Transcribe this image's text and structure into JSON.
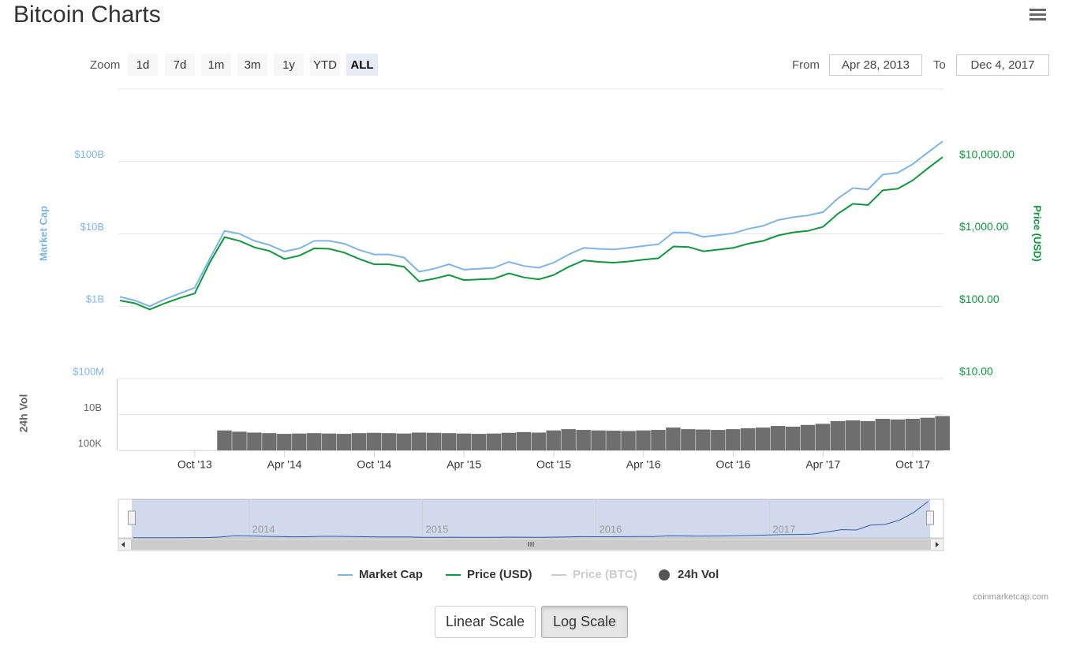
{
  "header": {
    "title": "Bitcoin Charts"
  },
  "zoom": {
    "label": "Zoom",
    "buttons": [
      "1d",
      "7d",
      "1m",
      "3m",
      "1y",
      "YTD",
      "ALL"
    ],
    "selected": 6
  },
  "range": {
    "from_label": "From",
    "from": "Apr 28, 2013",
    "to_label": "To",
    "to": "Dec 4, 2017"
  },
  "chart_data": {
    "type": "line",
    "log_scale": true,
    "grid": true,
    "x": [
      "2013-05",
      "2013-06",
      "2013-07",
      "2013-08",
      "2013-09",
      "2013-10",
      "2013-11",
      "2013-12",
      "2014-01",
      "2014-02",
      "2014-03",
      "2014-04",
      "2014-05",
      "2014-06",
      "2014-07",
      "2014-08",
      "2014-09",
      "2014-10",
      "2014-11",
      "2014-12",
      "2015-01",
      "2015-02",
      "2015-03",
      "2015-04",
      "2015-05",
      "2015-06",
      "2015-07",
      "2015-08",
      "2015-09",
      "2015-10",
      "2015-11",
      "2015-12",
      "2016-01",
      "2016-02",
      "2016-03",
      "2016-04",
      "2016-05",
      "2016-06",
      "2016-07",
      "2016-08",
      "2016-09",
      "2016-10",
      "2016-11",
      "2016-12",
      "2017-01",
      "2017-02",
      "2017-03",
      "2017-04",
      "2017-05",
      "2017-06",
      "2017-07",
      "2017-08",
      "2017-09",
      "2017-10",
      "2017-11",
      "2017-12"
    ],
    "xlim": [
      "2013-05",
      "2017-12"
    ],
    "xticks": [
      {
        "value": "2013-10",
        "label": "Oct '13"
      },
      {
        "value": "2014-04",
        "label": "Apr '14"
      },
      {
        "value": "2014-10",
        "label": "Oct '14"
      },
      {
        "value": "2015-04",
        "label": "Apr '15"
      },
      {
        "value": "2015-10",
        "label": "Oct '15"
      },
      {
        "value": "2016-04",
        "label": "Apr '16"
      },
      {
        "value": "2016-10",
        "label": "Oct '16"
      },
      {
        "value": "2017-04",
        "label": "Apr '17"
      },
      {
        "value": "2017-10",
        "label": "Oct '17"
      }
    ],
    "ylabel": "Market Cap",
    "ylim": [
      100000000,
      1000000000000
    ],
    "yticks": [
      {
        "value": 100000000,
        "label": "$100M"
      },
      {
        "value": 1000000000,
        "label": "$1B"
      },
      {
        "value": 10000000000,
        "label": "$10B"
      },
      {
        "value": 100000000000,
        "label": "$100B"
      }
    ],
    "y2label": "Price (USD)",
    "y2lim": [
      10,
      100000
    ],
    "y2ticks": [
      {
        "value": 10,
        "label": "$10.00"
      },
      {
        "value": 100,
        "label": "$100.00"
      },
      {
        "value": 1000,
        "label": "$1,000.00"
      },
      {
        "value": 10000,
        "label": "$10,000.00"
      }
    ],
    "vol_label": "24h Vol",
    "vol_ylim": [
      100000,
      1000000000000000
    ],
    "vol_yticks": [
      {
        "value": 100000,
        "label": "100K"
      },
      {
        "value": 10000000000,
        "label": "10B"
      }
    ],
    "series": [
      {
        "name": "Market Cap",
        "color": "#7cb5ec",
        "axis": "y",
        "values": [
          1350000000,
          1200000000,
          1000000000,
          1250000000,
          1500000000,
          1800000000,
          4500000000,
          11000000000,
          10000000000,
          8000000000,
          7000000000,
          5700000000,
          6300000000,
          8000000000,
          8000000000,
          7300000000,
          6000000000,
          5200000000,
          5200000000,
          4700000000,
          3000000000,
          3300000000,
          3800000000,
          3200000000,
          3300000000,
          3400000000,
          4100000000,
          3600000000,
          3400000000,
          4000000000,
          5200000000,
          6400000000,
          6200000000,
          6100000000,
          6400000000,
          6800000000,
          7200000000,
          10500000000,
          10400000000,
          9100000000,
          9600000000,
          10200000000,
          11700000000,
          12900000000,
          15500000000,
          17000000000,
          18000000000,
          20000000000,
          31000000000,
          43000000000,
          41000000000,
          66000000000,
          70000000000,
          92000000000,
          133000000000,
          190000000000
        ]
      },
      {
        "name": "Price (USD)",
        "color": "#0a9a3a",
        "axis": "y2",
        "values": [
          120,
          110,
          90,
          110,
          130,
          150,
          400,
          900,
          800,
          650,
          580,
          450,
          500,
          630,
          620,
          550,
          450,
          380,
          380,
          350,
          220,
          240,
          270,
          230,
          235,
          240,
          285,
          250,
          235,
          270,
          350,
          430,
          410,
          400,
          415,
          440,
          460,
          670,
          660,
          575,
          605,
          640,
          730,
          800,
          950,
          1050,
          1100,
          1250,
          1900,
          2600,
          2500,
          4000,
          4200,
          5500,
          8000,
          11500
        ]
      },
      {
        "name": "Price (BTC)",
        "color": "#cccccc",
        "visible": false
      },
      {
        "name": "24h Vol",
        "color": "#6e6e6e",
        "type": "bar",
        "axis": "vol",
        "values": [
          null,
          null,
          null,
          null,
          null,
          null,
          null,
          60000000,
          40000000,
          30000000,
          25000000,
          20000000,
          22000000,
          25000000,
          22000000,
          20000000,
          25000000,
          28000000,
          25000000,
          22000000,
          30000000,
          28000000,
          25000000,
          22000000,
          20000000,
          22000000,
          28000000,
          35000000,
          30000000,
          60000000,
          90000000,
          70000000,
          60000000,
          55000000,
          50000000,
          60000000,
          70000000,
          150000000,
          90000000,
          80000000,
          70000000,
          90000000,
          120000000,
          150000000,
          250000000,
          200000000,
          350000000,
          500000000,
          1200000000,
          1500000000,
          1200000000,
          2500000000,
          2000000000,
          2500000000,
          3500000000,
          6000000000
        ]
      }
    ],
    "navigator": {
      "ylim": [
        0,
        200000000000
      ],
      "xticks": [
        {
          "value": "2014-01",
          "label": "2014"
        },
        {
          "value": "2015-01",
          "label": "2015"
        },
        {
          "value": "2016-01",
          "label": "2016"
        },
        {
          "value": "2017-01",
          "label": "2017"
        }
      ]
    }
  },
  "credit": "coinmarketcap.com",
  "scale_buttons": {
    "options": [
      "Linear Scale",
      "Log Scale"
    ],
    "selected": 1
  }
}
